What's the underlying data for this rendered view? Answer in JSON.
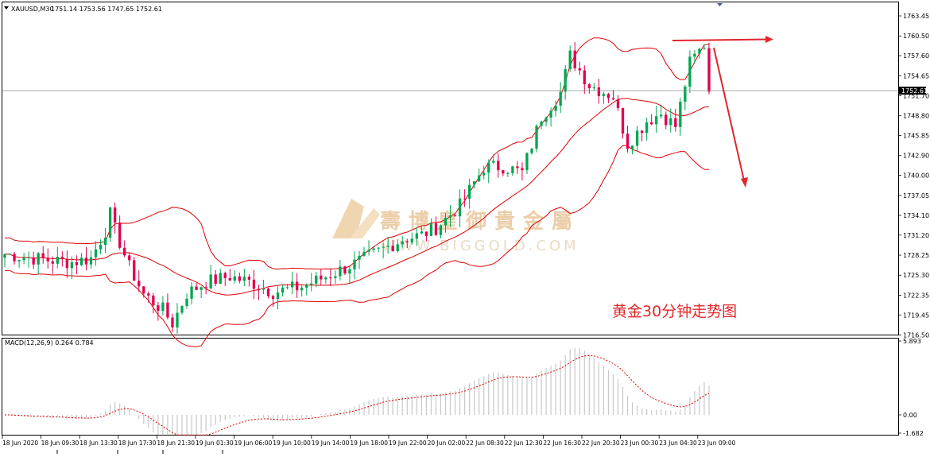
{
  "header": {
    "symbol": "XAUUSD,M30",
    "ohlc": "1751.14 1753.56 1747.65 1752.61"
  },
  "macd": {
    "label": "MACD(12,26,9) 0.264 0.784",
    "ticks": [
      "5.893",
      "0.00",
      "-1.682"
    ],
    "levels": [
      5.893,
      0.0,
      -1.682
    ]
  },
  "watermark": {
    "text": "壽博皇御貴金屬",
    "url": "WWW.BIGGOLD.COM"
  },
  "annotation": "黄金30分钟走势图",
  "current_price": "1752.61",
  "colors": {
    "candle_up": "#00a651",
    "candle_down": "#e0004d",
    "band": "#e00000",
    "arrow": "#e0272b",
    "macd_hist": "#c8c8c8",
    "macd_signal": "#e00000"
  },
  "chart_data": {
    "type": "candlestick",
    "yaxis": {
      "ticks": [
        "1763.45",
        "1760.50",
        "1757.60",
        "1754.65",
        "1751.70",
        "1748.80",
        "1745.85",
        "1742.90",
        "1740.00",
        "1737.05",
        "1734.10",
        "1731.20",
        "1728.25",
        "1725.30",
        "1722.35",
        "1719.45",
        "1716.50"
      ],
      "values": [
        1763.45,
        1760.5,
        1757.6,
        1754.65,
        1751.7,
        1748.8,
        1745.85,
        1742.9,
        1740.0,
        1737.05,
        1734.1,
        1731.2,
        1728.25,
        1725.3,
        1722.35,
        1719.45,
        1716.5
      ],
      "range": [
        1715.5,
        1765.0
      ]
    },
    "xaxis": {
      "ticks": [
        "18 Jun 2020",
        "18 Jun 09:30",
        "18 Jun 13:30",
        "18 Jun 17:30",
        "18 Jun 21:30",
        "19 Jun 01:30",
        "19 Jun 06:00",
        "19 Jun 10:00",
        "19 Jun 14:00",
        "19 Jun 18:00",
        "19 Jun 22:00",
        "20 Jun 02:00",
        "22 Jun 08:30",
        "22 Jun 12:30",
        "22 Jun 16:30",
        "22 Jun 20:30",
        "23 Jun 00:30",
        "23 Jun 04:30",
        "23 Jun 09:00"
      ]
    }
  }
}
